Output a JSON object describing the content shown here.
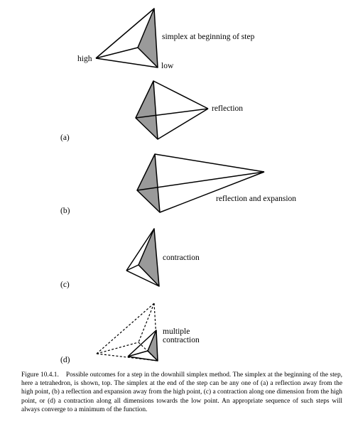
{
  "colors": {
    "shaded_face": "#9a9a9a",
    "line": "#000000",
    "background": "#ffffff"
  },
  "labels": {
    "top_simplex": "simplex at beginning of step",
    "high": "high",
    "low": "low",
    "reflection": "reflection",
    "reflection_expansion": "reflection and expansion",
    "contraction": "contraction",
    "multiple_line1": "multiple",
    "multiple_line2": "contraction"
  },
  "panels": {
    "a": "(a)",
    "b": "(b)",
    "c": "(c)",
    "d": "(d)"
  },
  "caption": "Figure 10.4.1.    Possible outcomes for a step in the downhill simplex method. The simplex at the beginning of the step, here a tetrahedron, is shown, top. The simplex at the end of the step can be any one of (a) a reflection away from the high point, (b) a reflection and expansion away from the high point, (c) a contraction along one dimension from the high point, or (d) a contraction along all dimensions towards the low point. An appropriate sequence of such steps will always converge to a minimum of the function."
}
